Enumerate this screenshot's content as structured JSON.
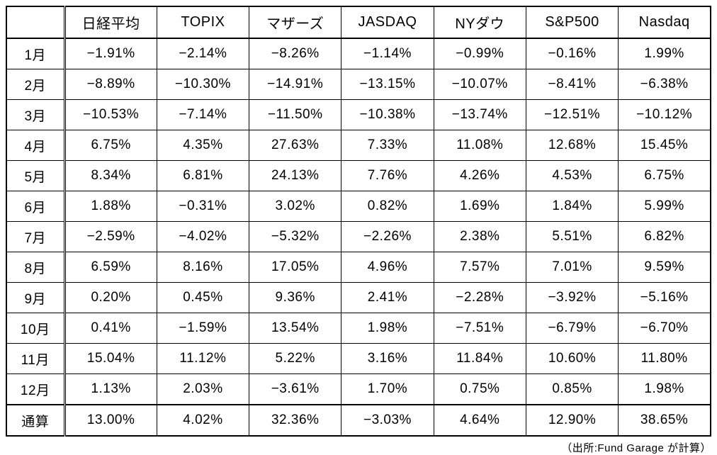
{
  "table": {
    "columns": [
      "",
      "日経平均",
      "TOPIX",
      "マザーズ",
      "JASDAQ",
      "NYダウ",
      "S&P500",
      "Nasdaq"
    ],
    "rows": [
      {
        "label": "1月",
        "values": [
          "−1.91%",
          "−2.14%",
          "−8.26%",
          "−1.14%",
          "−0.99%",
          "−0.16%",
          "1.99%"
        ]
      },
      {
        "label": "2月",
        "values": [
          "−8.89%",
          "−10.30%",
          "−14.91%",
          "−13.15%",
          "−10.07%",
          "−8.41%",
          "−6.38%"
        ]
      },
      {
        "label": "3月",
        "values": [
          "−10.53%",
          "−7.14%",
          "−11.50%",
          "−10.38%",
          "−13.74%",
          "−12.51%",
          "−10.12%"
        ]
      },
      {
        "label": "4月",
        "values": [
          "6.75%",
          "4.35%",
          "27.63%",
          "7.33%",
          "11.08%",
          "12.68%",
          "15.45%"
        ]
      },
      {
        "label": "5月",
        "values": [
          "8.34%",
          "6.81%",
          "24.13%",
          "7.76%",
          "4.26%",
          "4.53%",
          "6.75%"
        ]
      },
      {
        "label": "6月",
        "values": [
          "1.88%",
          "−0.31%",
          "3.02%",
          "0.82%",
          "1.69%",
          "1.84%",
          "5.99%"
        ]
      },
      {
        "label": "7月",
        "values": [
          "−2.59%",
          "−4.02%",
          "−5.32%",
          "−2.26%",
          "2.38%",
          "5.51%",
          "6.82%"
        ]
      },
      {
        "label": "8月",
        "values": [
          "6.59%",
          "8.16%",
          "17.05%",
          "4.96%",
          "7.57%",
          "7.01%",
          "9.59%"
        ]
      },
      {
        "label": "9月",
        "values": [
          "0.20%",
          "0.45%",
          "9.36%",
          "2.41%",
          "−2.28%",
          "−3.92%",
          "−5.16%"
        ]
      },
      {
        "label": "10月",
        "values": [
          "0.41%",
          "−1.59%",
          "13.54%",
          "1.98%",
          "−7.51%",
          "−6.79%",
          "−6.70%"
        ]
      },
      {
        "label": "11月",
        "values": [
          "15.04%",
          "11.12%",
          "5.22%",
          "3.16%",
          "11.84%",
          "10.60%",
          "11.80%"
        ]
      },
      {
        "label": "12月",
        "values": [
          "1.13%",
          "2.03%",
          "−3.61%",
          "1.70%",
          "0.75%",
          "0.85%",
          "1.98%"
        ]
      },
      {
        "label": "通算",
        "values": [
          "13.00%",
          "4.02%",
          "32.36%",
          "−3.03%",
          "4.64%",
          "12.90%",
          "38.65%"
        ]
      }
    ]
  },
  "footer": {
    "source_note": "（出所:Fund Garage が計算）"
  },
  "chart_data": {
    "type": "table",
    "title": "",
    "unit": "%",
    "categories": [
      "1月",
      "2月",
      "3月",
      "4月",
      "5月",
      "6月",
      "7月",
      "8月",
      "9月",
      "10月",
      "11月",
      "12月",
      "通算"
    ],
    "series": [
      {
        "name": "日経平均",
        "values": [
          -1.91,
          -8.89,
          -10.53,
          6.75,
          8.34,
          1.88,
          -2.59,
          6.59,
          0.2,
          0.41,
          15.04,
          1.13,
          13.0
        ]
      },
      {
        "name": "TOPIX",
        "values": [
          -2.14,
          -10.3,
          -7.14,
          4.35,
          6.81,
          -0.31,
          -4.02,
          8.16,
          0.45,
          -1.59,
          11.12,
          2.03,
          4.02
        ]
      },
      {
        "name": "マザーズ",
        "values": [
          -8.26,
          -14.91,
          -11.5,
          27.63,
          24.13,
          3.02,
          -5.32,
          17.05,
          9.36,
          13.54,
          5.22,
          -3.61,
          32.36
        ]
      },
      {
        "name": "JASDAQ",
        "values": [
          -1.14,
          -13.15,
          -10.38,
          7.33,
          7.76,
          0.82,
          -2.26,
          4.96,
          2.41,
          1.98,
          3.16,
          1.7,
          -3.03
        ]
      },
      {
        "name": "NYダウ",
        "values": [
          -0.99,
          -10.07,
          -13.74,
          11.08,
          4.26,
          1.69,
          2.38,
          7.57,
          -2.28,
          -7.51,
          11.84,
          0.75,
          4.64
        ]
      },
      {
        "name": "S&P500",
        "values": [
          -0.16,
          -8.41,
          -12.51,
          12.68,
          4.53,
          1.84,
          5.51,
          7.01,
          -3.92,
          -6.79,
          10.6,
          0.85,
          12.9
        ]
      },
      {
        "name": "Nasdaq",
        "values": [
          1.99,
          -6.38,
          -10.12,
          15.45,
          6.75,
          5.99,
          6.82,
          9.59,
          -5.16,
          -6.7,
          11.8,
          1.98,
          38.65
        ]
      }
    ]
  }
}
